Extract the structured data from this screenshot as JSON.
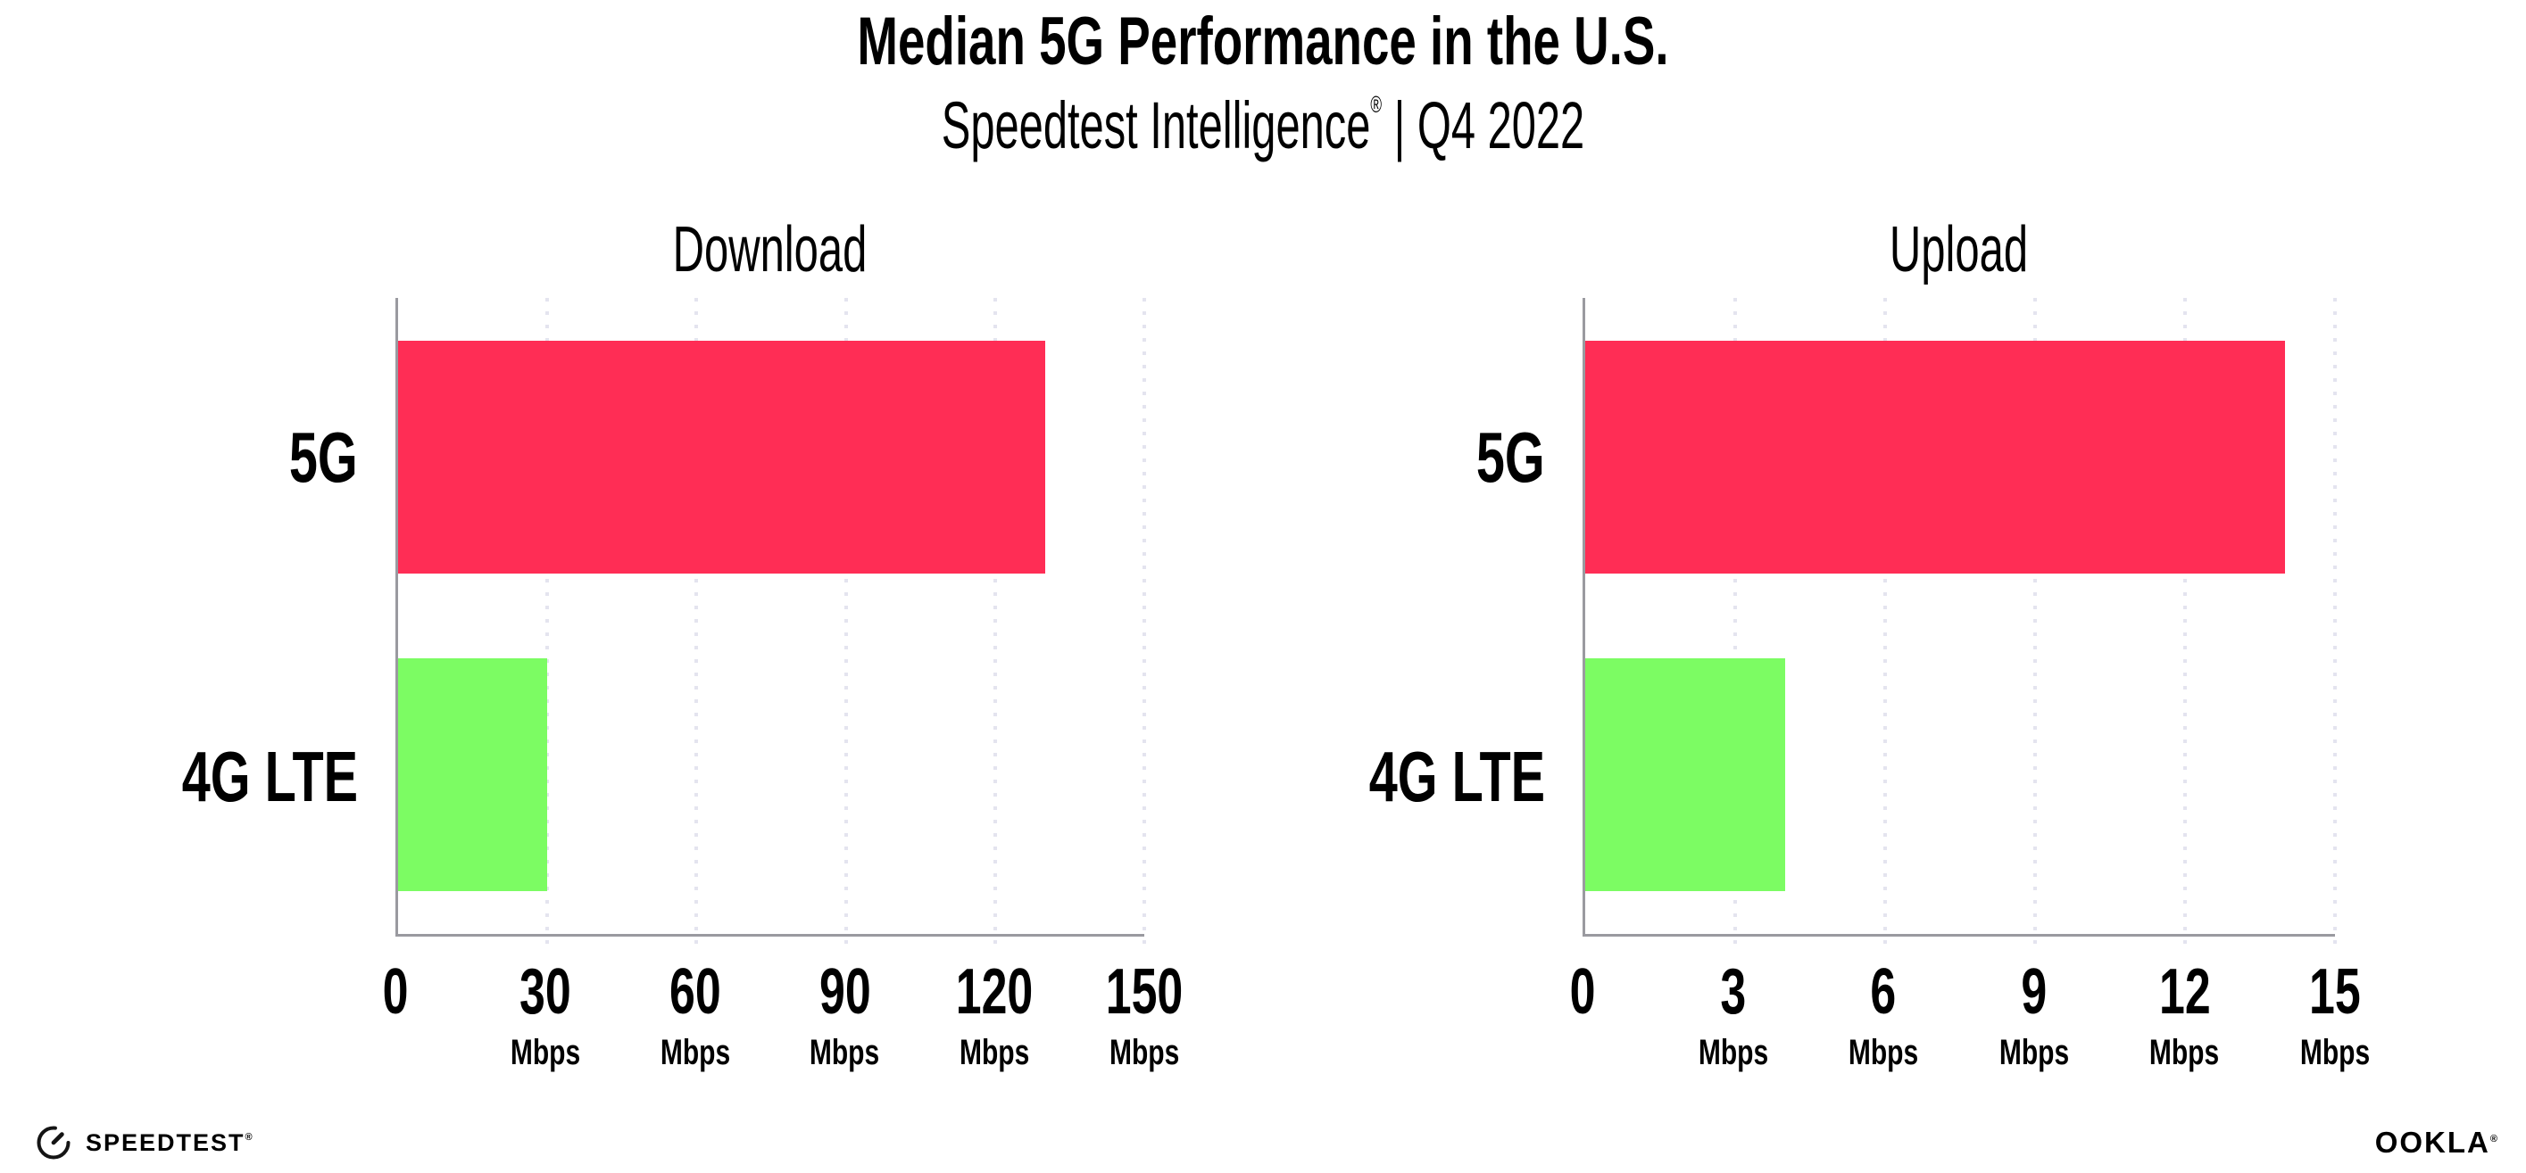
{
  "page": {
    "background": "#FFFFFF"
  },
  "header": {
    "title": "Median 5G Performance in the U.S.",
    "subtitle_brand": "Speedtest Intelligence",
    "subtitle_reg": "®",
    "subtitle_rest": " | Q4 2022"
  },
  "footer": {
    "speedtest_label": "SPEEDTEST",
    "speedtest_reg": "®",
    "ookla_label": "OOKLA",
    "ookla_reg": "®"
  },
  "colors": {
    "bar_5g": "#FF2D55",
    "bar_4g_lte": "#7CFC63",
    "gridline": "#E4E4EF",
    "axis": "#9A9AA0",
    "text": "#000000"
  },
  "chart_data": [
    {
      "type": "bar",
      "orientation": "horizontal",
      "title": "Download",
      "categories": [
        "5G",
        "4G LTE"
      ],
      "values": [
        130,
        30
      ],
      "value_unit": "Mbps",
      "xlim": [
        0,
        150
      ],
      "xticks": [
        0,
        30,
        60,
        90,
        120,
        150
      ],
      "xtick_unit": "Mbps",
      "bar_colors": [
        "#FF2D55",
        "#7CFC63"
      ],
      "grid": "vertical-dotted",
      "legend_position": "none"
    },
    {
      "type": "bar",
      "orientation": "horizontal",
      "title": "Upload",
      "categories": [
        "5G",
        "4G LTE"
      ],
      "values": [
        14,
        4
      ],
      "value_unit": "Mbps",
      "xlim": [
        0,
        15
      ],
      "xticks": [
        0,
        3,
        6,
        9,
        12,
        15
      ],
      "xtick_unit": "Mbps",
      "bar_colors": [
        "#FF2D55",
        "#7CFC63"
      ],
      "grid": "vertical-dotted",
      "legend_position": "none"
    }
  ]
}
